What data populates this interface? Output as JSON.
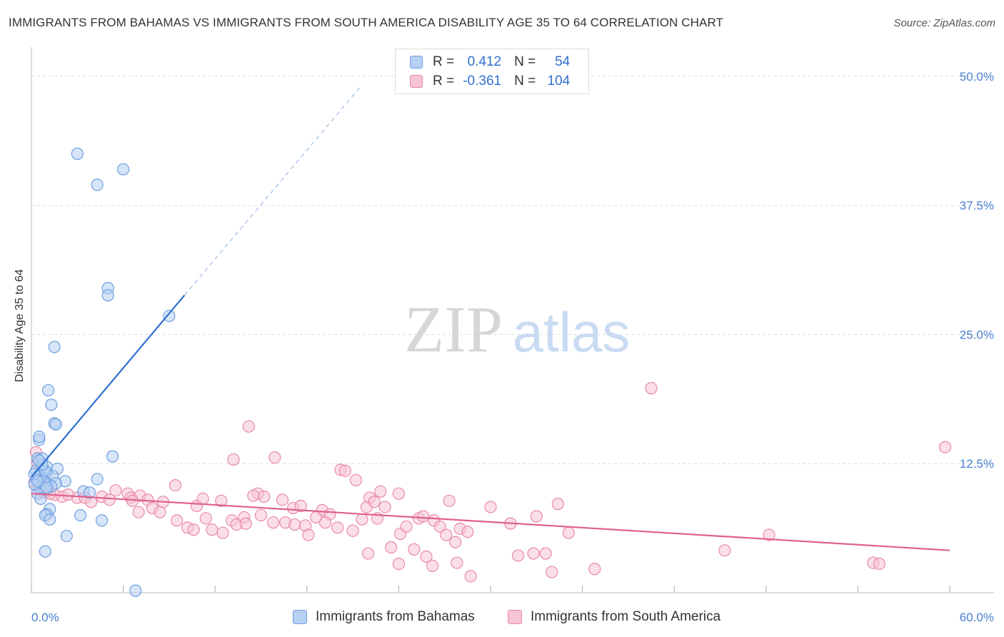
{
  "title": "IMMIGRANTS FROM BAHAMAS VS IMMIGRANTS FROM SOUTH AMERICA DISABILITY AGE 35 TO 64 CORRELATION CHART",
  "source": "Source: ZipAtlas.com",
  "watermark": {
    "zip": "ZIP",
    "atlas": "atlas"
  },
  "legend": {
    "r_label": "R =",
    "n_label": "N =",
    "rows": [
      {
        "r": "0.412",
        "n": "54"
      },
      {
        "r": "-0.361",
        "n": "104"
      }
    ]
  },
  "colors": {
    "blue": "#6e9fe0",
    "blue_fill": "#b6d0f3",
    "blue_line": "#2f6fd1",
    "pink": "#e88aa8",
    "pink_fill": "#f7c4d4",
    "pink_line": "#e0608e",
    "axis_text": "#4a7fd0"
  },
  "chart_data": {
    "type": "scatter",
    "title": "IMMIGRANTS FROM BAHAMAS VS IMMIGRANTS FROM SOUTH AMERICA DISABILITY AGE 35 TO 64 CORRELATION CHART",
    "xlabel": "",
    "ylabel": "Disability Age 35 to 64",
    "xlim": [
      0,
      60
    ],
    "ylim": [
      0,
      52
    ],
    "x_tick_labels": [
      "0.0%",
      "60.0%"
    ],
    "y_ticks": [
      12.5,
      25.0,
      37.5,
      50.0
    ],
    "y_tick_labels": [
      "12.5%",
      "25.0%",
      "37.5%",
      "50.0%"
    ],
    "series": [
      {
        "name": "Immigrants from Bahamas",
        "R": 0.412,
        "N": 54,
        "trend": {
          "x0": 0.0,
          "y0": 11.2,
          "x1": 10.0,
          "y1": 28.8,
          "dash_to_x": 21.5,
          "dash_to_y": 49.0
        },
        "points": [
          [
            3.0,
            42.5
          ],
          [
            4.3,
            39.5
          ],
          [
            6.0,
            41.0
          ],
          [
            5.0,
            29.5
          ],
          [
            5.0,
            28.8
          ],
          [
            9.0,
            26.8
          ],
          [
            1.5,
            23.8
          ],
          [
            1.1,
            19.6
          ],
          [
            1.3,
            18.2
          ],
          [
            1.5,
            16.4
          ],
          [
            1.6,
            16.3
          ],
          [
            0.5,
            14.8
          ],
          [
            0.5,
            15.1
          ],
          [
            5.3,
            13.2
          ],
          [
            0.4,
            13.0
          ],
          [
            0.7,
            13.0
          ],
          [
            1.0,
            12.2
          ],
          [
            1.7,
            12.0
          ],
          [
            0.3,
            11.8
          ],
          [
            0.8,
            11.6
          ],
          [
            0.5,
            11.4
          ],
          [
            1.0,
            11.6
          ],
          [
            1.4,
            11.3
          ],
          [
            0.4,
            11.2
          ],
          [
            0.6,
            11.1
          ],
          [
            0.3,
            11.0
          ],
          [
            0.8,
            10.9
          ],
          [
            2.2,
            10.8
          ],
          [
            4.3,
            11.0
          ],
          [
            1.1,
            10.5
          ],
          [
            1.6,
            10.6
          ],
          [
            1.3,
            10.3
          ],
          [
            0.5,
            10.2
          ],
          [
            0.9,
            10.0
          ],
          [
            0.4,
            9.6
          ],
          [
            3.4,
            9.8
          ],
          [
            0.2,
            10.5
          ],
          [
            3.8,
            9.7
          ],
          [
            0.6,
            9.1
          ],
          [
            1.2,
            8.1
          ],
          [
            1.0,
            7.6
          ],
          [
            0.9,
            7.5
          ],
          [
            3.2,
            7.5
          ],
          [
            1.2,
            7.1
          ],
          [
            4.6,
            7.0
          ],
          [
            2.3,
            5.5
          ],
          [
            0.9,
            4.0
          ],
          [
            6.8,
            0.2
          ],
          [
            0.2,
            11.5
          ],
          [
            0.9,
            11.8
          ],
          [
            0.4,
            10.8
          ],
          [
            1.0,
            10.2
          ],
          [
            0.7,
            12.4
          ],
          [
            0.5,
            12.8
          ]
        ]
      },
      {
        "name": "Immigrants from South America",
        "R": -0.361,
        "N": 104,
        "trend": {
          "x0": 0.0,
          "y0": 9.6,
          "x1": 60.0,
          "y1": 4.1
        },
        "points": [
          [
            40.5,
            19.8
          ],
          [
            59.7,
            14.1
          ],
          [
            14.2,
            16.1
          ],
          [
            13.2,
            12.9
          ],
          [
            15.9,
            13.1
          ],
          [
            20.2,
            11.9
          ],
          [
            20.5,
            11.8
          ],
          [
            21.2,
            10.9
          ],
          [
            9.4,
            10.4
          ],
          [
            22.8,
            9.8
          ],
          [
            14.8,
            9.6
          ],
          [
            15.2,
            9.3
          ],
          [
            2.0,
            9.3
          ],
          [
            3.0,
            9.2
          ],
          [
            5.5,
            9.9
          ],
          [
            6.3,
            9.6
          ],
          [
            6.5,
            9.2
          ],
          [
            7.1,
            9.4
          ],
          [
            7.6,
            9.0
          ],
          [
            8.6,
            8.8
          ],
          [
            10.8,
            8.4
          ],
          [
            11.2,
            9.1
          ],
          [
            12.4,
            8.9
          ],
          [
            14.5,
            9.4
          ],
          [
            16.4,
            9.0
          ],
          [
            17.1,
            8.2
          ],
          [
            17.6,
            8.4
          ],
          [
            19.0,
            8.0
          ],
          [
            19.5,
            7.6
          ],
          [
            21.9,
            8.3
          ],
          [
            22.1,
            9.2
          ],
          [
            22.4,
            8.8
          ],
          [
            23.1,
            8.3
          ],
          [
            24.0,
            9.6
          ],
          [
            27.3,
            8.9
          ],
          [
            30.0,
            8.3
          ],
          [
            34.4,
            8.6
          ],
          [
            33.0,
            7.4
          ],
          [
            1.5,
            9.5
          ],
          [
            2.4,
            9.5
          ],
          [
            3.5,
            9.2
          ],
          [
            3.9,
            8.8
          ],
          [
            4.6,
            9.3
          ],
          [
            5.1,
            9.0
          ],
          [
            6.6,
            8.9
          ],
          [
            7.0,
            7.8
          ],
          [
            7.9,
            8.2
          ],
          [
            8.4,
            7.8
          ],
          [
            9.5,
            7.0
          ],
          [
            10.2,
            6.3
          ],
          [
            10.6,
            6.1
          ],
          [
            11.4,
            7.2
          ],
          [
            11.8,
            6.1
          ],
          [
            12.5,
            5.8
          ],
          [
            13.1,
            7.0
          ],
          [
            13.4,
            6.6
          ],
          [
            13.9,
            7.3
          ],
          [
            14.0,
            6.7
          ],
          [
            15.0,
            7.5
          ],
          [
            15.8,
            6.8
          ],
          [
            16.6,
            6.8
          ],
          [
            17.2,
            6.6
          ],
          [
            17.9,
            6.5
          ],
          [
            18.1,
            5.6
          ],
          [
            18.6,
            7.3
          ],
          [
            19.2,
            6.8
          ],
          [
            20.0,
            6.3
          ],
          [
            21.0,
            6.0
          ],
          [
            21.6,
            7.1
          ],
          [
            22.6,
            7.2
          ],
          [
            24.1,
            5.7
          ],
          [
            24.5,
            6.4
          ],
          [
            25.3,
            7.2
          ],
          [
            25.6,
            7.4
          ],
          [
            26.3,
            7.0
          ],
          [
            26.7,
            6.4
          ],
          [
            27.1,
            5.6
          ],
          [
            27.7,
            4.9
          ],
          [
            28.0,
            6.2
          ],
          [
            28.5,
            5.9
          ],
          [
            31.3,
            6.7
          ],
          [
            31.8,
            3.6
          ],
          [
            32.8,
            3.8
          ],
          [
            34.0,
            2.0
          ],
          [
            33.6,
            3.8
          ],
          [
            35.1,
            5.8
          ],
          [
            36.8,
            2.3
          ],
          [
            24.0,
            2.8
          ],
          [
            25.0,
            4.2
          ],
          [
            25.8,
            3.5
          ],
          [
            26.2,
            2.6
          ],
          [
            27.8,
            2.9
          ],
          [
            22.0,
            3.8
          ],
          [
            23.5,
            4.4
          ],
          [
            28.7,
            1.6
          ],
          [
            45.3,
            4.1
          ],
          [
            48.2,
            5.6
          ],
          [
            55.0,
            2.9
          ],
          [
            55.4,
            2.8
          ],
          [
            0.6,
            9.9
          ],
          [
            1.0,
            9.8
          ],
          [
            0.3,
            13.6
          ],
          [
            0.4,
            12.6
          ],
          [
            0.2,
            10.7
          ],
          [
            0.8,
            9.7
          ],
          [
            1.2,
            9.6
          ]
        ]
      }
    ]
  },
  "bottom_legend": {
    "series_1": "Immigrants from Bahamas",
    "series_2": "Immigrants from South America"
  }
}
